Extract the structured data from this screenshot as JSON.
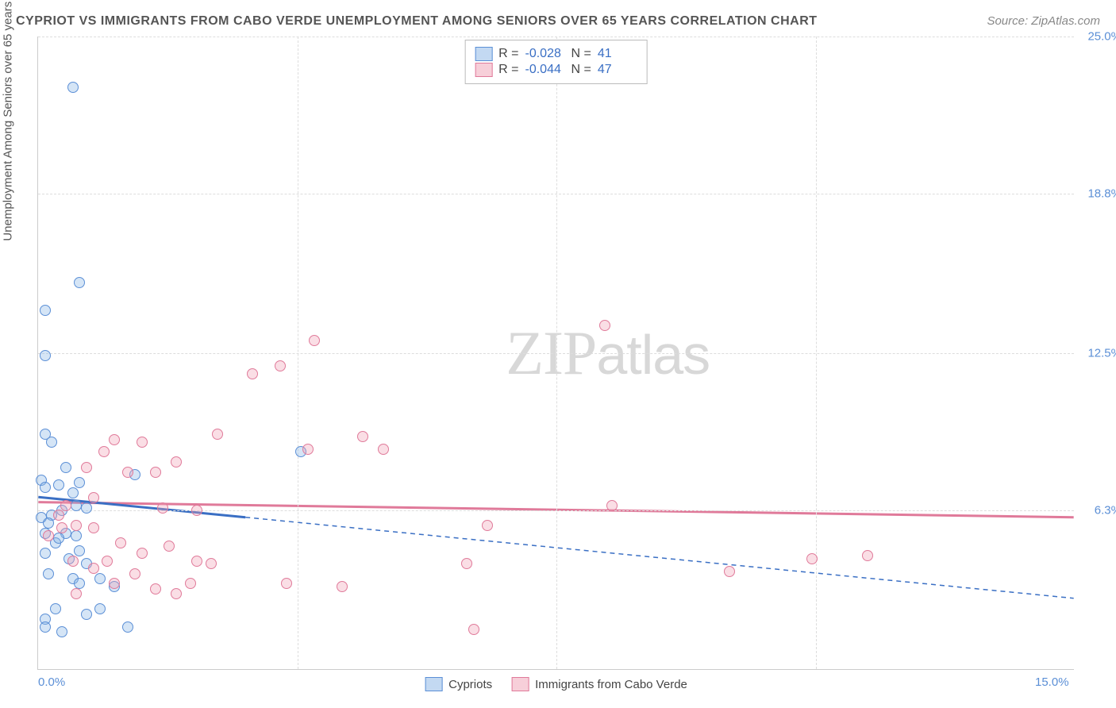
{
  "title": "CYPRIOT VS IMMIGRANTS FROM CABO VERDE UNEMPLOYMENT AMONG SENIORS OVER 65 YEARS CORRELATION CHART",
  "source": "Source: ZipAtlas.com",
  "ylabel": "Unemployment Among Seniors over 65 years",
  "watermark_bold": "ZIP",
  "watermark_thin": "atlas",
  "chart": {
    "type": "scatter",
    "xlim": [
      0,
      15
    ],
    "ylim": [
      0,
      25
    ],
    "y_ticks": [
      6.3,
      12.5,
      18.8,
      25.0
    ],
    "y_tick_labels": [
      "6.3%",
      "12.5%",
      "18.8%",
      "25.0%"
    ],
    "x_ticks": [
      0,
      15
    ],
    "x_tick_labels": [
      "0.0%",
      "15.0%"
    ],
    "x_gridlines": [
      3.75,
      7.5,
      11.25
    ],
    "background_color": "#ffffff",
    "grid_color": "#dddddd",
    "axis_color": "#cccccc",
    "tick_label_color": "#5b8fd6",
    "series": {
      "blue": {
        "label": "Cypriots",
        "color_fill": "rgba(135,180,230,0.35)",
        "color_stroke": "#5b8fd6",
        "R": "-0.028",
        "N": "41",
        "trend": {
          "x1": 0,
          "y1": 6.8,
          "x2": 15,
          "y2": 2.8,
          "solid_until_x": 3.0,
          "color": "#3a6fc4",
          "width": 3
        },
        "points": [
          [
            0.5,
            23.0
          ],
          [
            0.1,
            14.2
          ],
          [
            0.6,
            15.3
          ],
          [
            0.1,
            12.4
          ],
          [
            0.1,
            9.3
          ],
          [
            0.2,
            9.0
          ],
          [
            0.3,
            7.3
          ],
          [
            0.05,
            7.5
          ],
          [
            0.4,
            8.0
          ],
          [
            0.6,
            7.4
          ],
          [
            0.1,
            7.2
          ],
          [
            0.5,
            7.0
          ],
          [
            0.2,
            6.1
          ],
          [
            0.35,
            6.3
          ],
          [
            0.55,
            6.5
          ],
          [
            0.7,
            6.4
          ],
          [
            0.05,
            6.0
          ],
          [
            0.15,
            5.8
          ],
          [
            0.4,
            5.4
          ],
          [
            0.55,
            5.3
          ],
          [
            0.25,
            5.0
          ],
          [
            0.3,
            5.2
          ],
          [
            0.1,
            5.4
          ],
          [
            0.1,
            4.6
          ],
          [
            0.45,
            4.4
          ],
          [
            0.6,
            4.7
          ],
          [
            0.7,
            4.2
          ],
          [
            0.15,
            3.8
          ],
          [
            0.5,
            3.6
          ],
          [
            0.6,
            3.4
          ],
          [
            0.9,
            3.6
          ],
          [
            1.1,
            3.3
          ],
          [
            0.25,
            2.4
          ],
          [
            0.7,
            2.2
          ],
          [
            0.9,
            2.4
          ],
          [
            1.3,
            1.7
          ],
          [
            0.35,
            1.5
          ],
          [
            0.1,
            2.0
          ],
          [
            0.1,
            1.7
          ],
          [
            3.8,
            8.6
          ],
          [
            1.4,
            7.7
          ]
        ]
      },
      "pink": {
        "label": "Immigrants from Cabo Verde",
        "color_fill": "rgba(240,160,180,0.35)",
        "color_stroke": "#e07a9a",
        "R": "-0.044",
        "N": "47",
        "trend": {
          "x1": 0,
          "y1": 6.6,
          "x2": 15,
          "y2": 6.0,
          "solid_until_x": 15,
          "color": "#e07a9a",
          "width": 3
        },
        "points": [
          [
            8.2,
            13.6
          ],
          [
            4.0,
            13.0
          ],
          [
            3.1,
            11.7
          ],
          [
            3.5,
            12.0
          ],
          [
            4.7,
            9.2
          ],
          [
            3.9,
            8.7
          ],
          [
            2.6,
            9.3
          ],
          [
            5.0,
            8.7
          ],
          [
            1.5,
            9.0
          ],
          [
            1.1,
            9.1
          ],
          [
            0.7,
            8.0
          ],
          [
            1.3,
            7.8
          ],
          [
            1.7,
            7.8
          ],
          [
            2.0,
            8.2
          ],
          [
            0.8,
            6.8
          ],
          [
            0.4,
            6.5
          ],
          [
            0.3,
            6.1
          ],
          [
            0.55,
            5.7
          ],
          [
            0.8,
            5.6
          ],
          [
            0.15,
            5.3
          ],
          [
            0.35,
            5.6
          ],
          [
            8.3,
            6.5
          ],
          [
            6.5,
            5.7
          ],
          [
            6.2,
            4.2
          ],
          [
            1.8,
            6.4
          ],
          [
            2.3,
            6.3
          ],
          [
            1.2,
            5.0
          ],
          [
            1.5,
            4.6
          ],
          [
            1.9,
            4.9
          ],
          [
            2.3,
            4.3
          ],
          [
            2.5,
            4.2
          ],
          [
            3.6,
            3.4
          ],
          [
            4.4,
            3.3
          ],
          [
            1.4,
            3.8
          ],
          [
            1.1,
            3.4
          ],
          [
            1.7,
            3.2
          ],
          [
            2.2,
            3.4
          ],
          [
            2.0,
            3.0
          ],
          [
            6.3,
            1.6
          ],
          [
            10.0,
            3.9
          ],
          [
            11.2,
            4.4
          ],
          [
            12.0,
            4.5
          ],
          [
            0.95,
            8.6
          ],
          [
            0.5,
            4.3
          ],
          [
            0.8,
            4.0
          ],
          [
            1.0,
            4.3
          ],
          [
            0.55,
            3.0
          ]
        ]
      }
    }
  },
  "legend_top": {
    "r_label": "R =",
    "n_label": "N ="
  }
}
